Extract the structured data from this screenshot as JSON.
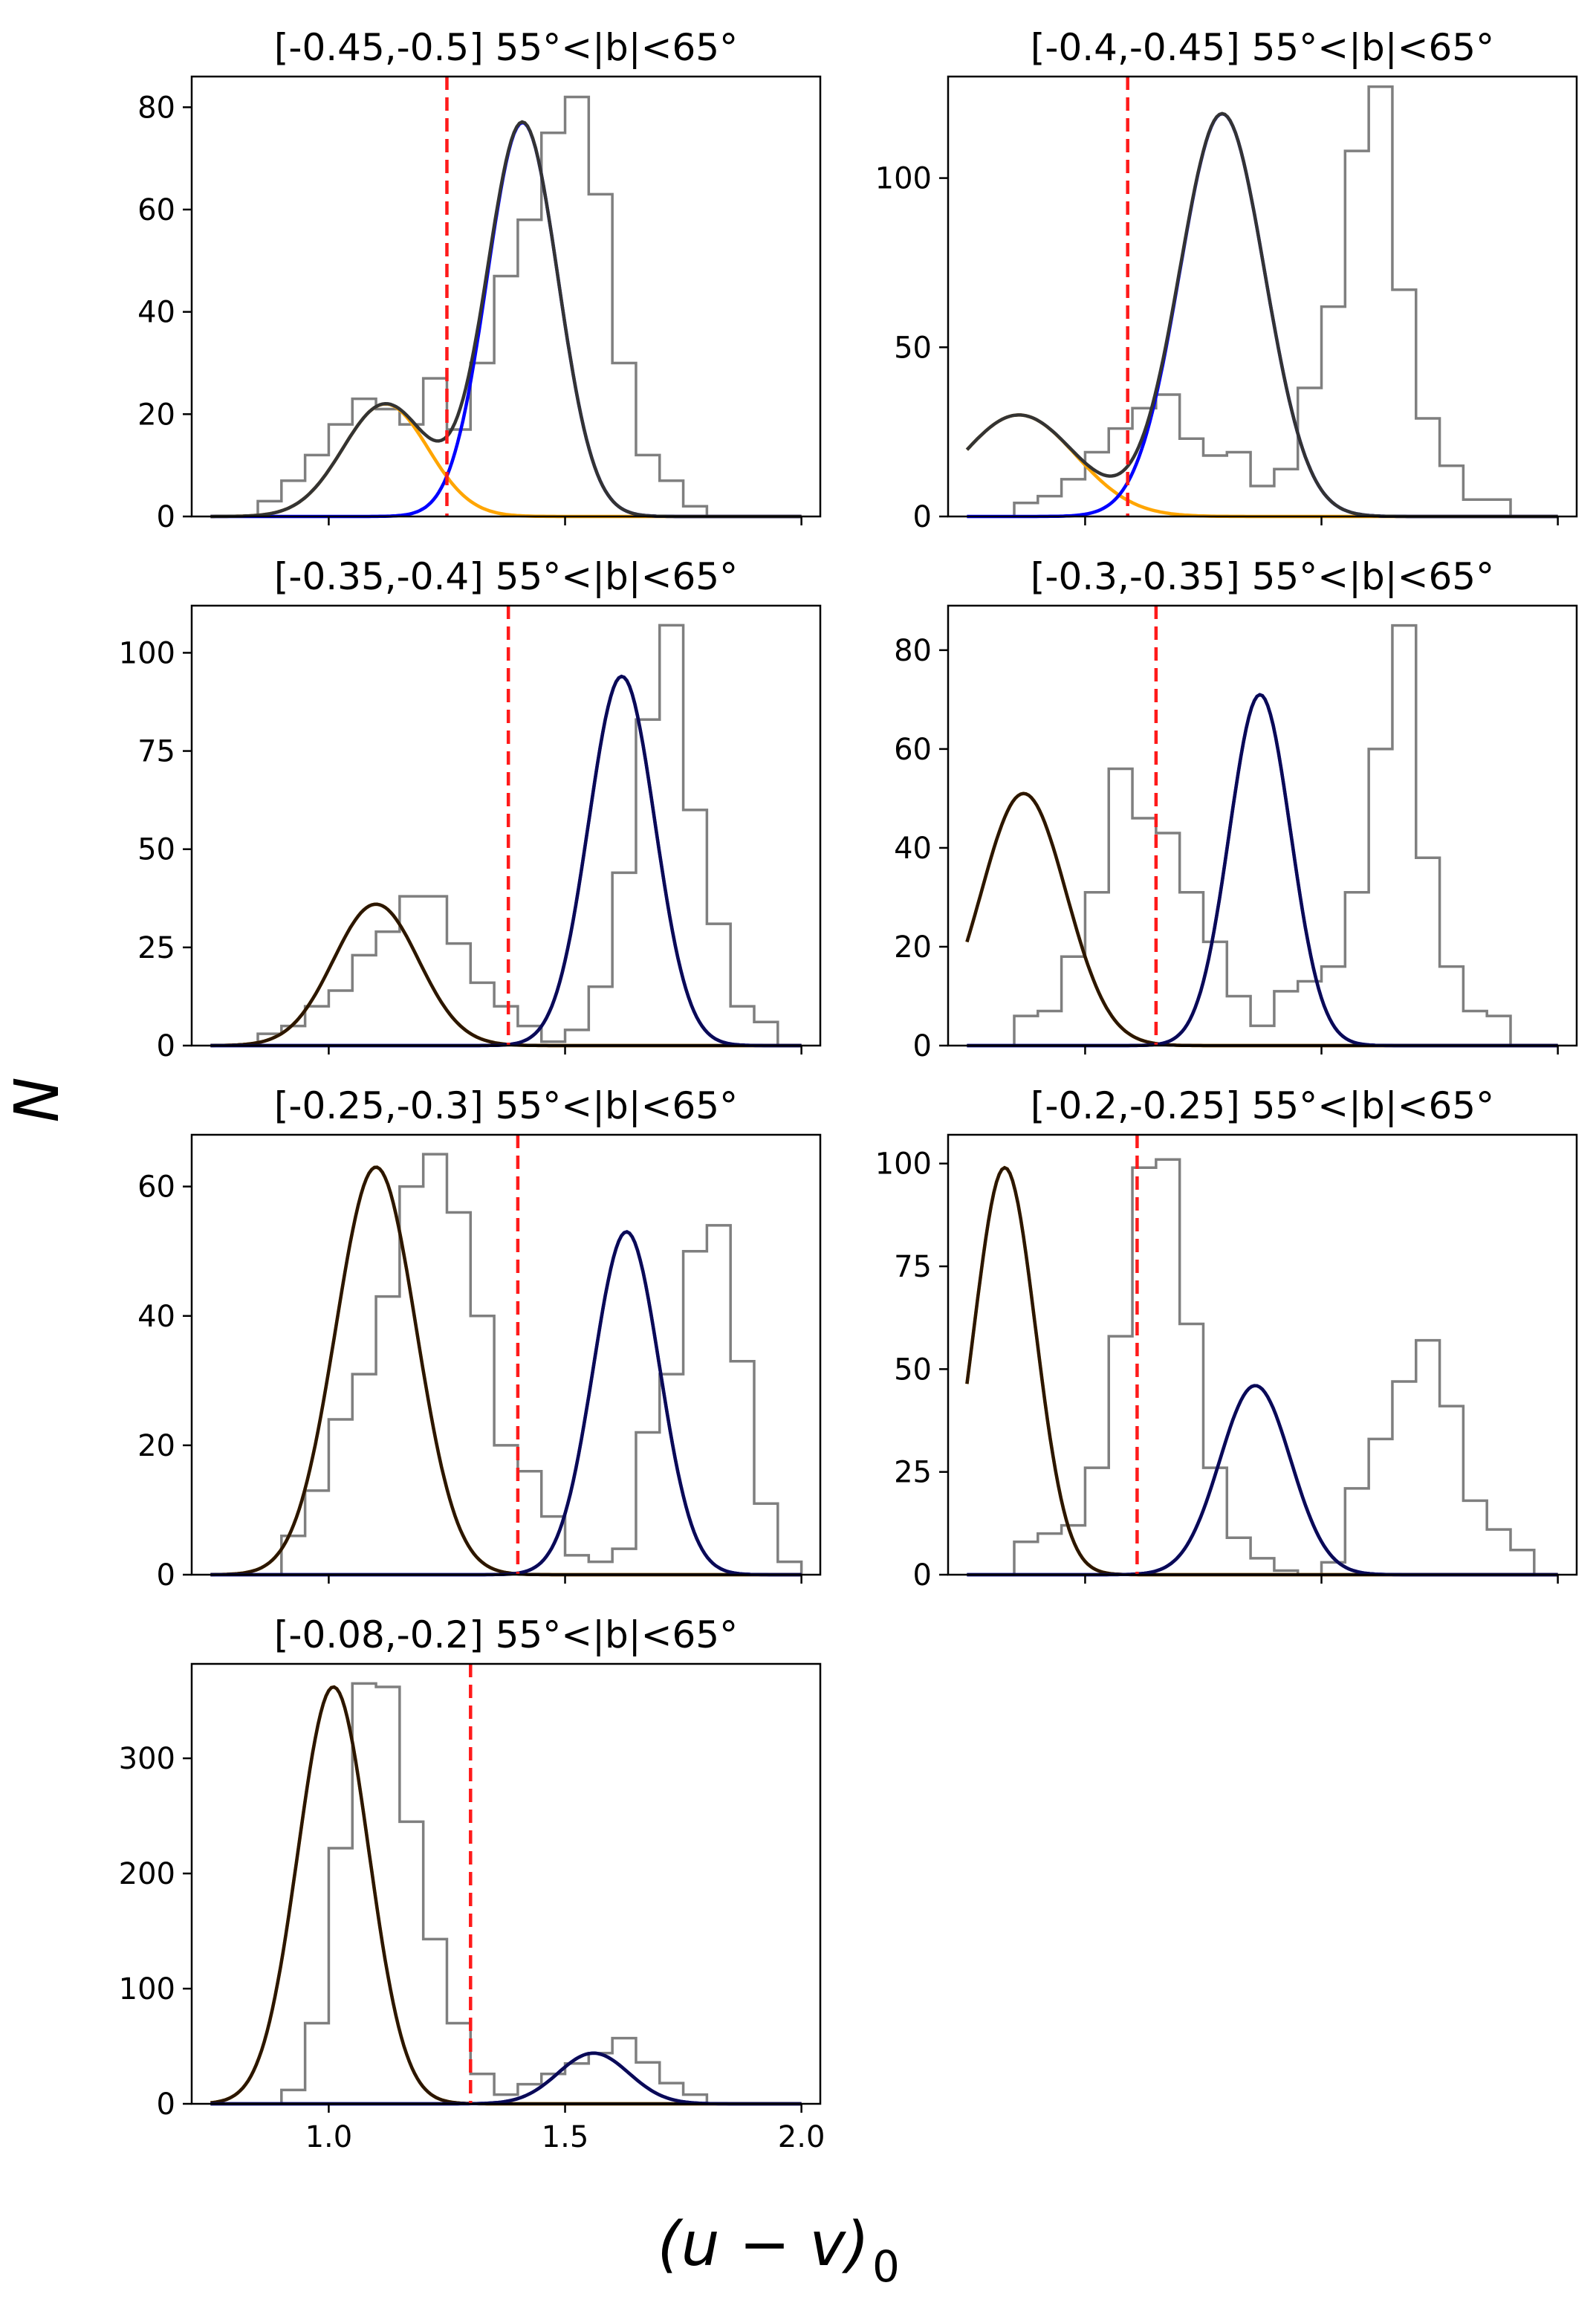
{
  "figure": {
    "ylabel": "N",
    "xlabel_main": "(u − v)",
    "xlabel_sub": "0"
  },
  "chart_data": [
    {
      "type": "histogram",
      "title": "[-0.45,-0.5] 55°<|b|<65°",
      "xlim": [
        0.75,
        2.0
      ],
      "ylim": [
        0,
        86
      ],
      "yticks": [
        0,
        20,
        40,
        60,
        80
      ],
      "xticks": [
        1.0,
        1.5,
        2.0
      ],
      "bin_edges": [
        0.75,
        0.8,
        0.85,
        0.9,
        0.95,
        1.0,
        1.05,
        1.1,
        1.15,
        1.2,
        1.25,
        1.3,
        1.35,
        1.4,
        1.45,
        1.5,
        1.55,
        1.6,
        1.65,
        1.7,
        1.75,
        1.8,
        1.85,
        1.9,
        1.95,
        2.0
      ],
      "counts": [
        0,
        0,
        3,
        7,
        12,
        18,
        23,
        21,
        18,
        27,
        17,
        30,
        47,
        58,
        75,
        82,
        63,
        30,
        12,
        7,
        2,
        0,
        0,
        0,
        0
      ],
      "cut": 1.25,
      "gaussians": [
        {
          "color": "orange",
          "amp": 22,
          "mu": 1.12,
          "sigma": 0.09
        },
        {
          "color": "blue",
          "amp": 77,
          "mu": 1.41,
          "sigma": 0.075
        }
      ],
      "sum_curve": true
    },
    {
      "type": "histogram",
      "title": "[-0.4,-0.45] 55°<|b|<65°",
      "xlim": [
        0.75,
        2.0
      ],
      "ylim": [
        0,
        130
      ],
      "yticks": [
        0,
        50,
        100
      ],
      "xticks": [
        1.0,
        1.5,
        2.0
      ],
      "bin_edges": [
        0.75,
        0.8,
        0.85,
        0.9,
        0.95,
        1.0,
        1.05,
        1.1,
        1.15,
        1.2,
        1.25,
        1.3,
        1.35,
        1.4,
        1.45,
        1.5,
        1.55,
        1.6,
        1.65,
        1.7,
        1.75,
        1.8,
        1.85,
        1.9,
        1.95,
        2.0
      ],
      "counts": [
        0,
        0,
        4,
        6,
        11,
        19,
        26,
        32,
        36,
        23,
        18,
        19,
        9,
        14,
        38,
        62,
        108,
        127,
        67,
        29,
        15,
        5,
        5,
        0,
        0
      ],
      "cut": 1.09,
      "gaussians": [
        {
          "color": "orange",
          "amp": 30,
          "mu": 0.86,
          "sigma": 0.12
        },
        {
          "color": "blue",
          "amp": 119,
          "mu": 1.29,
          "sigma": 0.09
        }
      ],
      "sum_curve": true
    },
    {
      "type": "histogram",
      "title": "[-0.35,-0.4] 55°<|b|<65°",
      "xlim": [
        0.75,
        2.0
      ],
      "ylim": [
        0,
        112
      ],
      "yticks": [
        0,
        25,
        50,
        75,
        100
      ],
      "xticks": [
        1.0,
        1.5,
        2.0
      ],
      "bin_edges": [
        0.75,
        0.8,
        0.85,
        0.9,
        0.95,
        1.0,
        1.05,
        1.1,
        1.15,
        1.2,
        1.25,
        1.3,
        1.35,
        1.4,
        1.45,
        1.5,
        1.55,
        1.6,
        1.65,
        1.7,
        1.75,
        1.8,
        1.85,
        1.9,
        1.95,
        2.0
      ],
      "counts": [
        0,
        0,
        3,
        5,
        10,
        14,
        23,
        29,
        38,
        38,
        26,
        16,
        10,
        5,
        1,
        4,
        15,
        44,
        83,
        107,
        60,
        31,
        10,
        6,
        0
      ],
      "cut": 1.38,
      "gaussians": [
        {
          "color": "orange",
          "amp": 36,
          "mu": 1.1,
          "sigma": 0.09
        },
        {
          "color": "blue",
          "amp": 94,
          "mu": 1.62,
          "sigma": 0.07
        }
      ],
      "sum_curve": false
    },
    {
      "type": "histogram",
      "title": "[-0.3,-0.35] 55°<|b|<65°",
      "xlim": [
        0.75,
        2.0
      ],
      "ylim": [
        0,
        89
      ],
      "yticks": [
        0,
        20,
        40,
        60,
        80
      ],
      "xticks": [
        1.0,
        1.5,
        2.0
      ],
      "bin_edges": [
        0.75,
        0.8,
        0.85,
        0.9,
        0.95,
        1.0,
        1.05,
        1.1,
        1.15,
        1.2,
        1.25,
        1.3,
        1.35,
        1.4,
        1.45,
        1.5,
        1.55,
        1.6,
        1.65,
        1.7,
        1.75,
        1.8,
        1.85,
        1.9,
        1.95,
        2.0
      ],
      "counts": [
        0,
        0,
        6,
        7,
        18,
        31,
        56,
        46,
        43,
        31,
        21,
        10,
        4,
        11,
        13,
        16,
        31,
        60,
        85,
        38,
        16,
        7,
        6,
        0,
        0
      ],
      "cut": 1.15,
      "gaussians": [
        {
          "color": "orange",
          "amp": 51,
          "mu": 0.87,
          "sigma": 0.09
        },
        {
          "color": "blue",
          "amp": 71,
          "mu": 1.37,
          "sigma": 0.065
        }
      ],
      "sum_curve": false
    },
    {
      "type": "histogram",
      "title": "[-0.25,-0.3] 55°<|b|<65°",
      "xlim": [
        0.75,
        2.0
      ],
      "ylim": [
        0,
        68
      ],
      "yticks": [
        0,
        20,
        40,
        60
      ],
      "xticks": [
        1.0,
        1.5,
        2.0
      ],
      "bin_edges": [
        0.75,
        0.8,
        0.85,
        0.9,
        0.95,
        1.0,
        1.05,
        1.1,
        1.15,
        1.2,
        1.25,
        1.3,
        1.35,
        1.4,
        1.45,
        1.5,
        1.55,
        1.6,
        1.65,
        1.7,
        1.75,
        1.8,
        1.85,
        1.9,
        1.95,
        2.0
      ],
      "counts": [
        0,
        0,
        0,
        6,
        13,
        24,
        31,
        43,
        60,
        65,
        56,
        40,
        20,
        16,
        9,
        3,
        2,
        4,
        22,
        31,
        50,
        54,
        33,
        11,
        2
      ],
      "cut": 1.4,
      "gaussians": [
        {
          "color": "orange",
          "amp": 63,
          "mu": 1.1,
          "sigma": 0.085
        },
        {
          "color": "blue",
          "amp": 53,
          "mu": 1.63,
          "sigma": 0.07
        }
      ],
      "sum_curve": false
    },
    {
      "type": "histogram",
      "title": "[-0.2,-0.25] 55°<|b|<65°",
      "xlim": [
        0.75,
        2.0
      ],
      "ylim": [
        0,
        107
      ],
      "yticks": [
        0,
        25,
        50,
        75,
        100
      ],
      "xticks": [
        1.0,
        1.5,
        2.0
      ],
      "bin_edges": [
        0.75,
        0.8,
        0.85,
        0.9,
        0.95,
        1.0,
        1.05,
        1.1,
        1.15,
        1.2,
        1.25,
        1.3,
        1.35,
        1.4,
        1.45,
        1.5,
        1.55,
        1.6,
        1.65,
        1.7,
        1.75,
        1.8,
        1.85,
        1.9,
        1.95,
        2.0
      ],
      "counts": [
        0,
        0,
        8,
        10,
        12,
        26,
        58,
        99,
        101,
        61,
        26,
        9,
        4,
        1,
        0,
        3,
        21,
        33,
        47,
        57,
        41,
        18,
        11,
        6,
        0
      ],
      "cut": 1.11,
      "gaussians": [
        {
          "color": "orange",
          "amp": 99,
          "mu": 0.83,
          "sigma": 0.065
        },
        {
          "color": "blue",
          "amp": 46,
          "mu": 1.36,
          "sigma": 0.075
        }
      ],
      "sum_curve": false
    },
    {
      "type": "histogram",
      "title": "[-0.08,-0.2] 55°<|b|<65°",
      "xlim": [
        0.75,
        2.0
      ],
      "ylim": [
        0,
        382
      ],
      "yticks": [
        0,
        100,
        200,
        300
      ],
      "xticks": [
        1.0,
        1.5,
        2.0
      ],
      "xticklabels": [
        "1.0",
        "1.5",
        "2.0"
      ],
      "bin_edges": [
        0.75,
        0.8,
        0.85,
        0.9,
        0.95,
        1.0,
        1.05,
        1.1,
        1.15,
        1.2,
        1.25,
        1.3,
        1.35,
        1.4,
        1.45,
        1.5,
        1.55,
        1.6,
        1.65,
        1.7,
        1.75,
        1.8,
        1.85,
        1.9,
        1.95,
        2.0
      ],
      "counts": [
        0,
        0,
        0,
        12,
        70,
        222,
        365,
        362,
        245,
        143,
        70,
        26,
        8,
        17,
        26,
        35,
        44,
        57,
        36,
        18,
        8,
        0,
        0,
        0,
        0
      ],
      "cut": 1.3,
      "gaussians": [
        {
          "color": "orange",
          "amp": 362,
          "mu": 1.01,
          "sigma": 0.075
        },
        {
          "color": "blue",
          "amp": 44,
          "mu": 1.56,
          "sigma": 0.075
        }
      ],
      "sum_curve": false
    }
  ]
}
